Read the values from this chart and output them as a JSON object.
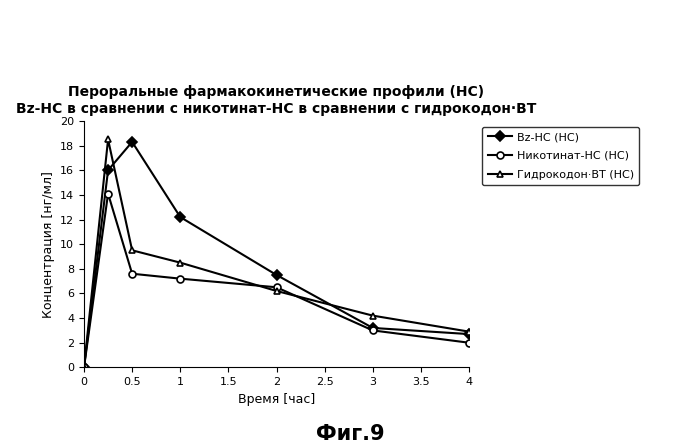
{
  "title_line1": "Пероральные фармакокинетические профили (НС)",
  "title_line2": "Bz-НС в сравнении с никотинат-НС в сравнении с гидрокодон·ВТ",
  "xlabel": "Время [час]",
  "ylabel": "Концентрация [нг/мл]",
  "fig_label": "Фиг.9",
  "xlim": [
    0,
    4
  ],
  "ylim": [
    0,
    20
  ],
  "xticks": [
    0,
    0.5,
    1.0,
    1.5,
    2.0,
    2.5,
    3.0,
    3.5,
    4.0
  ],
  "yticks": [
    0,
    2,
    4,
    6,
    8,
    10,
    12,
    14,
    16,
    18,
    20
  ],
  "series": [
    {
      "label": "Bz-НС (НС)",
      "x": [
        0,
        0.25,
        0.5,
        1.0,
        2.0,
        3.0,
        4.0
      ],
      "y": [
        0,
        16.0,
        18.3,
        12.2,
        7.5,
        3.2,
        2.7
      ],
      "marker": "D",
      "markersize": 5,
      "linestyle": "-",
      "linewidth": 1.5,
      "color": "#000000",
      "markerfacecolor": "#000000"
    },
    {
      "label": "Никотинат-НС (НС)",
      "x": [
        0,
        0.25,
        0.5,
        1.0,
        2.0,
        3.0,
        4.0
      ],
      "y": [
        0,
        14.1,
        7.6,
        7.2,
        6.5,
        3.0,
        2.0
      ],
      "marker": "o",
      "markersize": 5,
      "linestyle": "-",
      "linewidth": 1.5,
      "color": "#000000",
      "markerfacecolor": "#ffffff"
    },
    {
      "label": "Гидрокодон·ВТ (НС)",
      "x": [
        0,
        0.25,
        0.5,
        1.0,
        2.0,
        3.0,
        4.0
      ],
      "y": [
        0,
        18.5,
        9.5,
        8.5,
        6.2,
        4.2,
        2.9
      ],
      "marker": "^",
      "markersize": 5,
      "linestyle": "-",
      "linewidth": 1.5,
      "color": "#000000",
      "markerfacecolor": "#ffffff"
    }
  ],
  "background_color": "#ffffff",
  "title_fontsize": 10,
  "axis_label_fontsize": 9,
  "tick_fontsize": 8,
  "legend_fontsize": 8,
  "fig_label_fontsize": 15
}
